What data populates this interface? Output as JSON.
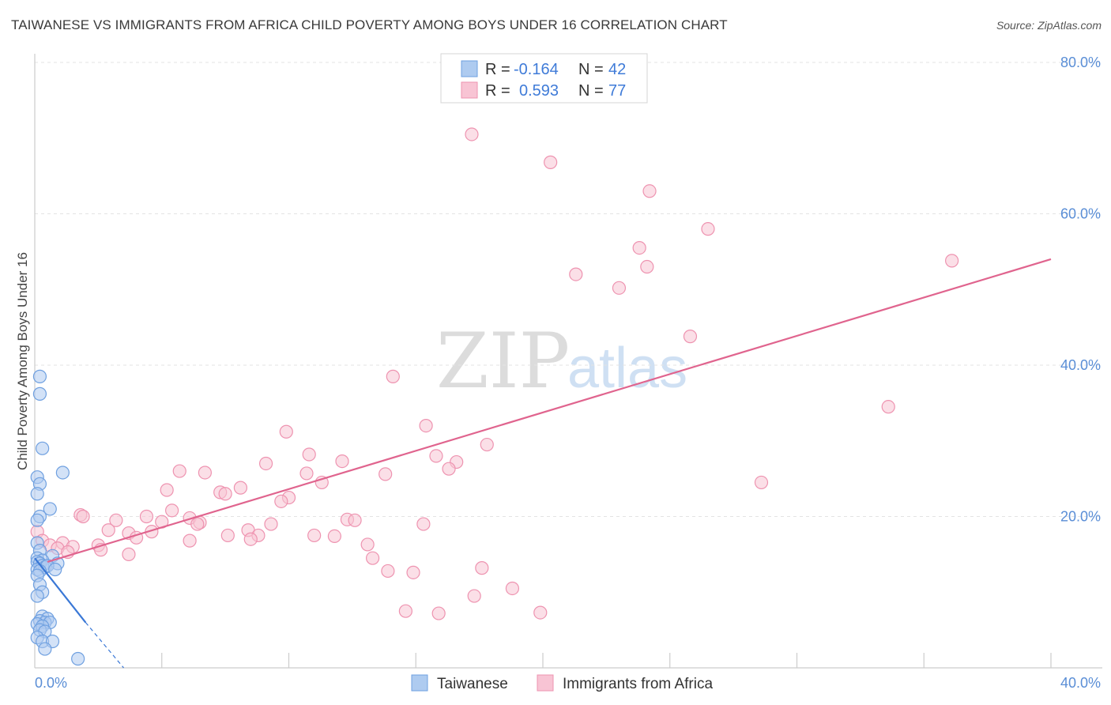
{
  "title": "TAIWANESE VS IMMIGRANTS FROM AFRICA CHILD POVERTY AMONG BOYS UNDER 16 CORRELATION CHART",
  "source": "Source: ZipAtlas.com",
  "watermark": {
    "zip": "ZIP",
    "atlas": "atlas"
  },
  "colors": {
    "taiwanese_fill": "#aecbf0",
    "taiwanese_stroke": "#6fa0e0",
    "taiwanese_line": "#3a78d6",
    "africa_fill": "#f8c4d4",
    "africa_stroke": "#ee93b0",
    "africa_line": "#e0648e",
    "grid": "#e3e3e3",
    "tick_text": "#5a8ed6"
  },
  "legend_top": {
    "rows": [
      {
        "r_label": "R =",
        "r_value": "-0.164",
        "n_label": "N =",
        "n_value": "42",
        "series": "taiwanese"
      },
      {
        "r_label": "R =",
        "r_value": "0.593",
        "n_label": "N =",
        "n_value": "77",
        "series": "africa"
      }
    ]
  },
  "legend_bottom": [
    {
      "label": "Taiwanese",
      "series": "taiwanese"
    },
    {
      "label": "Immigrants from Africa",
      "series": "africa"
    }
  ],
  "chart_data": {
    "type": "scatter",
    "title": "TAIWANESE VS IMMIGRANTS FROM AFRICA CHILD POVERTY AMONG BOYS UNDER 16 CORRELATION CHART",
    "xlabel": "",
    "ylabel": "Child Poverty Among Boys Under 16",
    "xlim": [
      0,
      40
    ],
    "ylim": [
      0,
      80
    ],
    "x_tick_labels": [
      "0.0%",
      "40.0%"
    ],
    "y_ticks": [
      20,
      40,
      60,
      80
    ],
    "y_tick_labels": [
      "20.0%",
      "40.0%",
      "60.0%",
      "80.0%"
    ],
    "grid": true,
    "series": [
      {
        "name": "Taiwanese",
        "key": "taiwanese",
        "R": -0.164,
        "N": 42,
        "points": [
          [
            0.2,
            38.5
          ],
          [
            0.2,
            36.2
          ],
          [
            0.3,
            29.0
          ],
          [
            1.1,
            25.8
          ],
          [
            0.1,
            25.2
          ],
          [
            0.2,
            24.3
          ],
          [
            0.1,
            23.0
          ],
          [
            0.6,
            21.0
          ],
          [
            0.2,
            20.0
          ],
          [
            0.1,
            19.5
          ],
          [
            0.1,
            16.5
          ],
          [
            0.2,
            15.5
          ],
          [
            0.7,
            14.8
          ],
          [
            0.1,
            14.5
          ],
          [
            0.3,
            14.2
          ],
          [
            0.1,
            14.0
          ],
          [
            0.2,
            13.8
          ],
          [
            0.9,
            13.8
          ],
          [
            0.3,
            13.5
          ],
          [
            0.4,
            13.3
          ],
          [
            0.5,
            13.5
          ],
          [
            0.8,
            13.0
          ],
          [
            0.1,
            13.0
          ],
          [
            0.2,
            12.8
          ],
          [
            0.1,
            12.2
          ],
          [
            0.2,
            11.0
          ],
          [
            0.3,
            10.0
          ],
          [
            0.1,
            9.5
          ],
          [
            0.3,
            6.8
          ],
          [
            0.5,
            6.5
          ],
          [
            0.2,
            6.2
          ],
          [
            0.4,
            6.0
          ],
          [
            0.6,
            6.0
          ],
          [
            0.1,
            5.8
          ],
          [
            0.3,
            5.5
          ],
          [
            0.2,
            5.0
          ],
          [
            0.4,
            4.8
          ],
          [
            0.1,
            4.0
          ],
          [
            0.3,
            3.5
          ],
          [
            0.7,
            3.5
          ],
          [
            0.4,
            2.5
          ],
          [
            1.7,
            1.2
          ]
        ],
        "trend": {
          "x0": 0,
          "y0": 14.5,
          "x1": 2.0,
          "y1": 6.0,
          "dash_x1": 3.5,
          "dash_y1": 0
        }
      },
      {
        "name": "Immigrants from Africa",
        "key": "africa",
        "R": 0.593,
        "N": 77,
        "points": [
          [
            17.2,
            70.5
          ],
          [
            20.3,
            66.8
          ],
          [
            24.2,
            63.0
          ],
          [
            26.5,
            58.0
          ],
          [
            23.8,
            55.5
          ],
          [
            24.1,
            53.0
          ],
          [
            21.3,
            52.0
          ],
          [
            23.0,
            50.2
          ],
          [
            36.1,
            53.8
          ],
          [
            25.8,
            43.8
          ],
          [
            14.1,
            38.5
          ],
          [
            33.6,
            34.5
          ],
          [
            15.4,
            32.0
          ],
          [
            9.9,
            31.2
          ],
          [
            17.8,
            29.5
          ],
          [
            10.8,
            28.2
          ],
          [
            15.8,
            28.0
          ],
          [
            12.1,
            27.3
          ],
          [
            16.6,
            27.2
          ],
          [
            9.1,
            27.0
          ],
          [
            16.3,
            26.3
          ],
          [
            5.7,
            26.0
          ],
          [
            6.7,
            25.8
          ],
          [
            10.7,
            25.7
          ],
          [
            13.8,
            25.6
          ],
          [
            11.3,
            24.5
          ],
          [
            28.6,
            24.5
          ],
          [
            8.1,
            23.8
          ],
          [
            5.2,
            23.5
          ],
          [
            7.3,
            23.2
          ],
          [
            7.5,
            23.0
          ],
          [
            10.0,
            22.5
          ],
          [
            9.7,
            22.0
          ],
          [
            5.4,
            20.8
          ],
          [
            1.8,
            20.2
          ],
          [
            1.9,
            20.0
          ],
          [
            3.2,
            19.5
          ],
          [
            4.4,
            20.0
          ],
          [
            6.1,
            19.8
          ],
          [
            12.3,
            19.6
          ],
          [
            12.6,
            19.5
          ],
          [
            5.0,
            19.3
          ],
          [
            6.5,
            19.2
          ],
          [
            9.3,
            19.0
          ],
          [
            6.4,
            19.0
          ],
          [
            15.3,
            19.0
          ],
          [
            0.1,
            18.0
          ],
          [
            2.9,
            18.2
          ],
          [
            4.6,
            18.0
          ],
          [
            3.7,
            17.8
          ],
          [
            8.4,
            18.2
          ],
          [
            4.0,
            17.2
          ],
          [
            11.0,
            17.5
          ],
          [
            11.8,
            17.4
          ],
          [
            7.6,
            17.5
          ],
          [
            8.8,
            17.5
          ],
          [
            8.5,
            17.0
          ],
          [
            6.1,
            16.8
          ],
          [
            0.3,
            16.8
          ],
          [
            1.1,
            16.5
          ],
          [
            0.6,
            16.2
          ],
          [
            2.5,
            16.2
          ],
          [
            13.1,
            16.3
          ],
          [
            0.9,
            15.8
          ],
          [
            1.5,
            16.0
          ],
          [
            2.6,
            15.6
          ],
          [
            1.3,
            15.3
          ],
          [
            3.7,
            15.0
          ],
          [
            13.3,
            14.5
          ],
          [
            17.6,
            13.2
          ],
          [
            13.9,
            12.8
          ],
          [
            14.9,
            12.6
          ],
          [
            18.8,
            10.5
          ],
          [
            17.3,
            9.5
          ],
          [
            14.6,
            7.5
          ],
          [
            15.9,
            7.2
          ],
          [
            19.9,
            7.3
          ]
        ],
        "trend": {
          "x0": 0.5,
          "y0": 14.0,
          "x1": 40,
          "y1": 54.0
        }
      }
    ]
  }
}
